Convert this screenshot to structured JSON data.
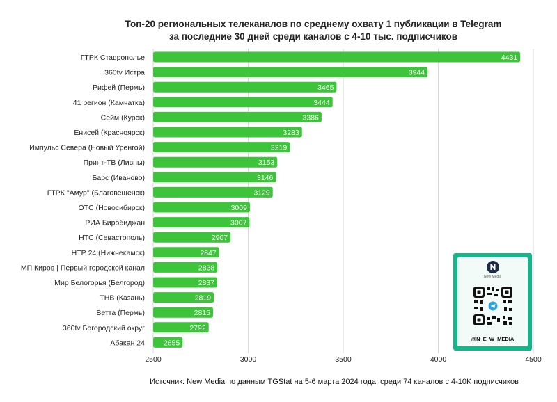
{
  "chart_data": {
    "type": "bar",
    "orientation": "horizontal",
    "title": "Топ-20 региональных телеканалов по среднему охвату 1 публикации в Telegram",
    "subtitle": "за последние 30 дней среди каналов с 4-10 тыс. подписчиков",
    "categories": [
      "ГТРК Ставрополье",
      "360tv Истра",
      "Рифей (Пермь)",
      "41 регион (Камчатка)",
      "Сейм (Курск)",
      "Енисей (Красноярск)",
      "Импульс Севера (Новый Уренгой)",
      "Принт-ТВ (Ливны)",
      "Барс (Иваново)",
      "ГТРК \"Амур\" (Благовещенск)",
      "ОТС (Новосибирск)",
      "РИА Биробиджан",
      "НТС (Севастополь)",
      "НТР 24 (Нижнекамск)",
      "МП Киров | Первый городской канал",
      "Мир Белогорья (Белгород)",
      "ТНВ (Казань)",
      "Ветта (Пермь)",
      "360tv Богородский округ",
      "Абакан 24"
    ],
    "values": [
      4431,
      3944,
      3465,
      3444,
      3386,
      3283,
      3219,
      3153,
      3146,
      3129,
      3009,
      3007,
      2907,
      2847,
      2838,
      2837,
      2819,
      2815,
      2792,
      2655
    ],
    "xlim": [
      2500,
      4500
    ],
    "x_ticks": [
      2500,
      3000,
      3500,
      4000,
      4500
    ],
    "grid": true,
    "bar_color": "#3dc43a",
    "label_color": "#ffffff"
  },
  "source_text": "Источник: New Media по данным TGStat на 5-6 марта 2024 года, среди 74 каналов с 4-10K подписчиков",
  "qr_card": {
    "logo_letter": "N",
    "logo_text": "New Media",
    "handle": "@N_E_W_MEDIA",
    "accent": "#19b58a",
    "icon": "telegram-icon"
  }
}
